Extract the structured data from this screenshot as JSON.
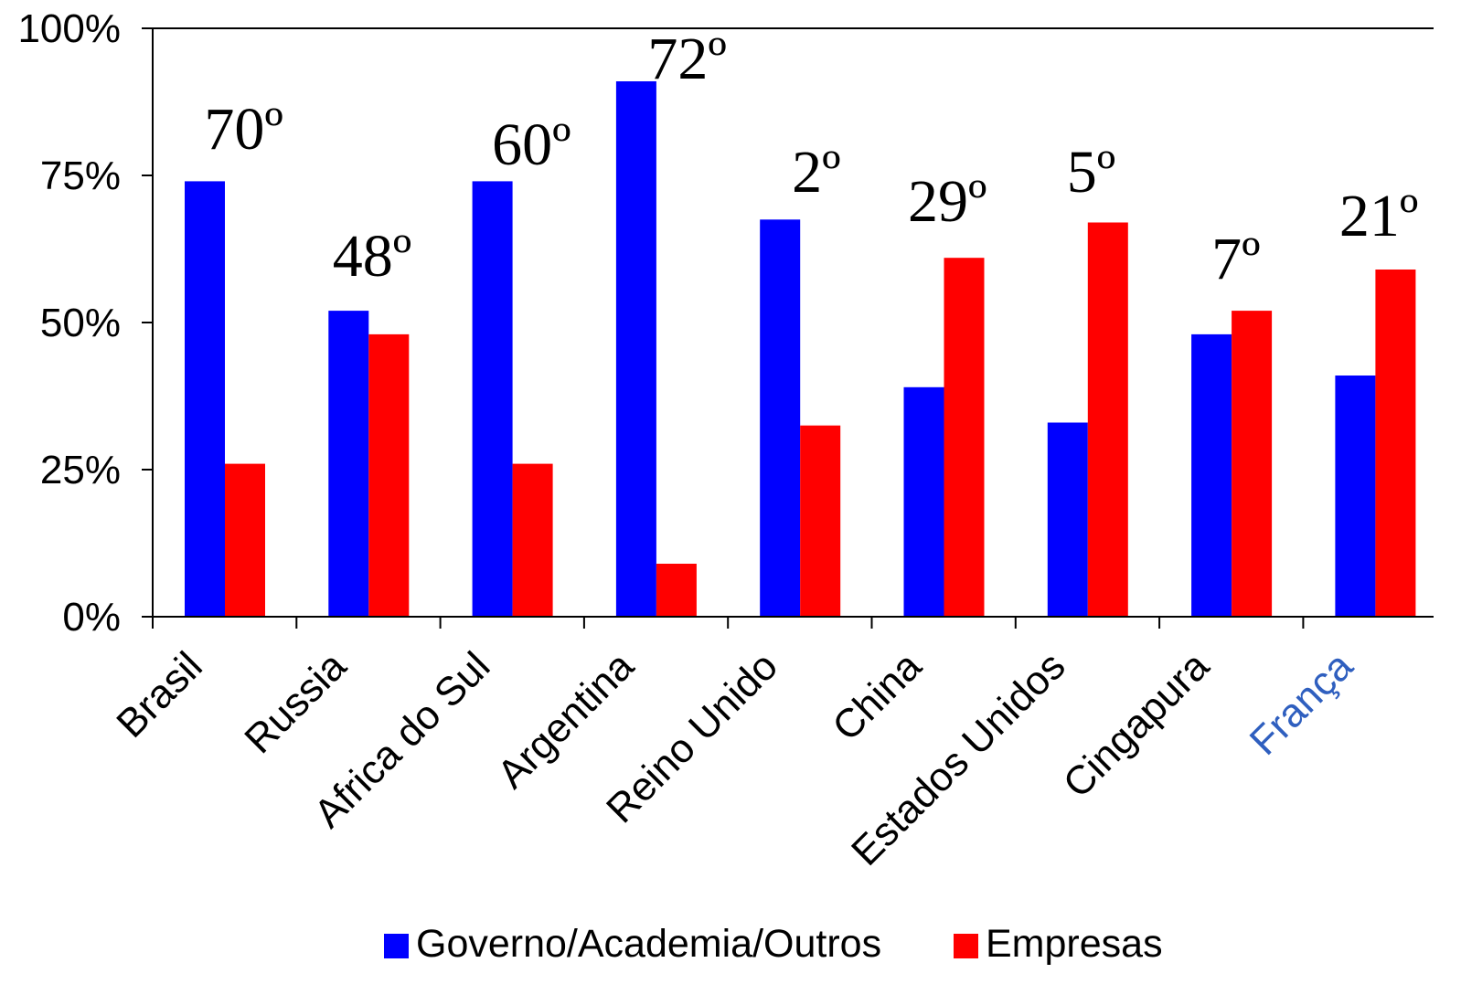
{
  "chart_data": {
    "type": "bar",
    "categories": [
      "Brasil",
      "Russia",
      "Africa do Sul",
      "Argentina",
      "Reino Unido",
      "China",
      "Estados Unidos",
      "Cingapura",
      "França"
    ],
    "category_label_colors": [
      "#000000",
      "#000000",
      "#000000",
      "#000000",
      "#000000",
      "#000000",
      "#000000",
      "#000000",
      "#2f5fbf"
    ],
    "series": [
      {
        "name": "Governo/Academia/Outros",
        "color": "#0000ff",
        "values": [
          74,
          52,
          74,
          91,
          67.5,
          39,
          33,
          48,
          41
        ]
      },
      {
        "name": "Empresas",
        "color": "#ff0000",
        "values": [
          26,
          48,
          26,
          9,
          32.5,
          61,
          67,
          52,
          59
        ]
      }
    ],
    "rank_annotations": [
      "70º",
      "48º",
      "60º",
      "72º",
      "2º",
      "29º",
      "5º",
      "7º",
      "21º"
    ],
    "ylim": [
      0,
      100
    ],
    "ytick_values": [
      0,
      25,
      50,
      75,
      100
    ],
    "ytick_labels": [
      "0%",
      "25%",
      "50%",
      "75%",
      "100%"
    ],
    "grid": false,
    "legend_position": "bottom"
  }
}
